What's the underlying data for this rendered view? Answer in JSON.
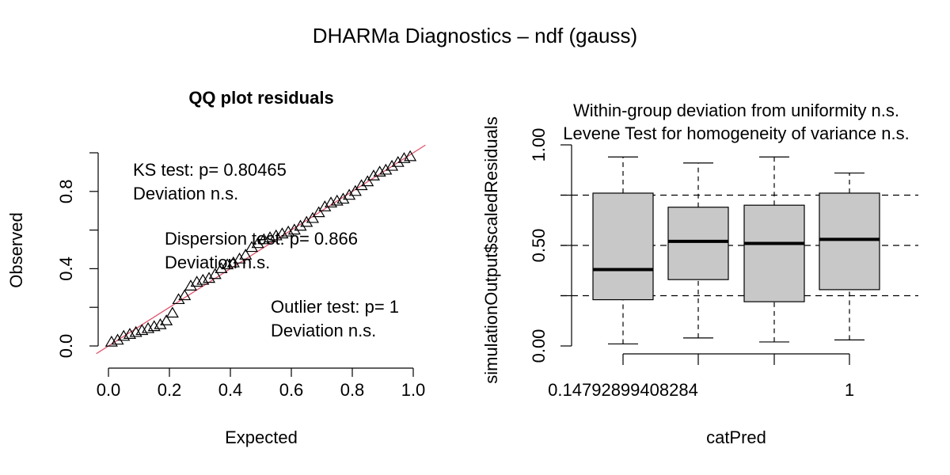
{
  "page_title": "DHARMa Diagnostics – ndf (gauss)",
  "chart_data": [
    {
      "type": "scatter",
      "title": "QQ plot residuals",
      "xlabel": "Expected",
      "ylabel": "Observed",
      "xlim": [
        0,
        1
      ],
      "ylim": [
        0,
        1
      ],
      "x_ticks": [
        "0.0",
        "0.2",
        "0.4",
        "0.6",
        "0.8",
        "1.0"
      ],
      "y_ticks": [
        "0.0",
        "0.4",
        "0.8"
      ],
      "point_marker": "triangle",
      "reference_line": {
        "from": [
          0,
          0
        ],
        "to": [
          1,
          1
        ],
        "color": "#df536b"
      },
      "series": [
        {
          "x": [
            0.01,
            0.03,
            0.05,
            0.07,
            0.09,
            0.11,
            0.13,
            0.15,
            0.17,
            0.19,
            0.21,
            0.23,
            0.25,
            0.27,
            0.29,
            0.31,
            0.33,
            0.35,
            0.37,
            0.39,
            0.41,
            0.43,
            0.45,
            0.47,
            0.49,
            0.51,
            0.53,
            0.55,
            0.57,
            0.59,
            0.61,
            0.63,
            0.65,
            0.67,
            0.69,
            0.71,
            0.73,
            0.75,
            0.77,
            0.79,
            0.81,
            0.83,
            0.85,
            0.87,
            0.89,
            0.91,
            0.93,
            0.95,
            0.97,
            0.99
          ],
          "y": [
            0.02,
            0.03,
            0.05,
            0.06,
            0.07,
            0.08,
            0.09,
            0.1,
            0.11,
            0.13,
            0.17,
            0.24,
            0.26,
            0.31,
            0.33,
            0.34,
            0.35,
            0.37,
            0.4,
            0.42,
            0.43,
            0.45,
            0.47,
            0.51,
            0.53,
            0.55,
            0.56,
            0.57,
            0.58,
            0.59,
            0.6,
            0.62,
            0.64,
            0.66,
            0.69,
            0.72,
            0.74,
            0.75,
            0.76,
            0.78,
            0.8,
            0.83,
            0.85,
            0.88,
            0.9,
            0.91,
            0.93,
            0.95,
            0.97,
            0.98
          ]
        }
      ],
      "annotations": [
        {
          "lines": [
            "KS test: p= 0.80465",
            "Deviation  n.s."
          ]
        },
        {
          "lines": [
            "Dispersion test: p= 0.866",
            "Deviation  n.s."
          ]
        },
        {
          "lines": [
            "Outlier test: p= 1",
            "Deviation  n.s."
          ]
        }
      ]
    },
    {
      "type": "box",
      "title_lines": [
        "Within-group deviation from uniformity n.s.",
        "Levene Test for homogeneity of variance n.s."
      ],
      "xlabel": "catPred",
      "ylabel": "simulationOutput$scaledResiduals",
      "ylim": [
        0,
        1
      ],
      "y_ticks": [
        "0.00",
        "0.50",
        "1.00"
      ],
      "x_tick_labels": [
        "0.14792899408284",
        "",
        "",
        "1"
      ],
      "reference_lines": [
        0.25,
        0.5,
        0.75
      ],
      "box_fill": "#c8c8c8",
      "boxes": [
        {
          "whisker_low": 0.01,
          "q1": 0.23,
          "median": 0.38,
          "q3": 0.76,
          "whisker_high": 0.94
        },
        {
          "whisker_low": 0.04,
          "q1": 0.33,
          "median": 0.52,
          "q3": 0.69,
          "whisker_high": 0.91
        },
        {
          "whisker_low": 0.02,
          "q1": 0.22,
          "median": 0.51,
          "q3": 0.7,
          "whisker_high": 0.94
        },
        {
          "whisker_low": 0.03,
          "q1": 0.28,
          "median": 0.53,
          "q3": 0.76,
          "whisker_high": 0.86
        }
      ]
    }
  ]
}
